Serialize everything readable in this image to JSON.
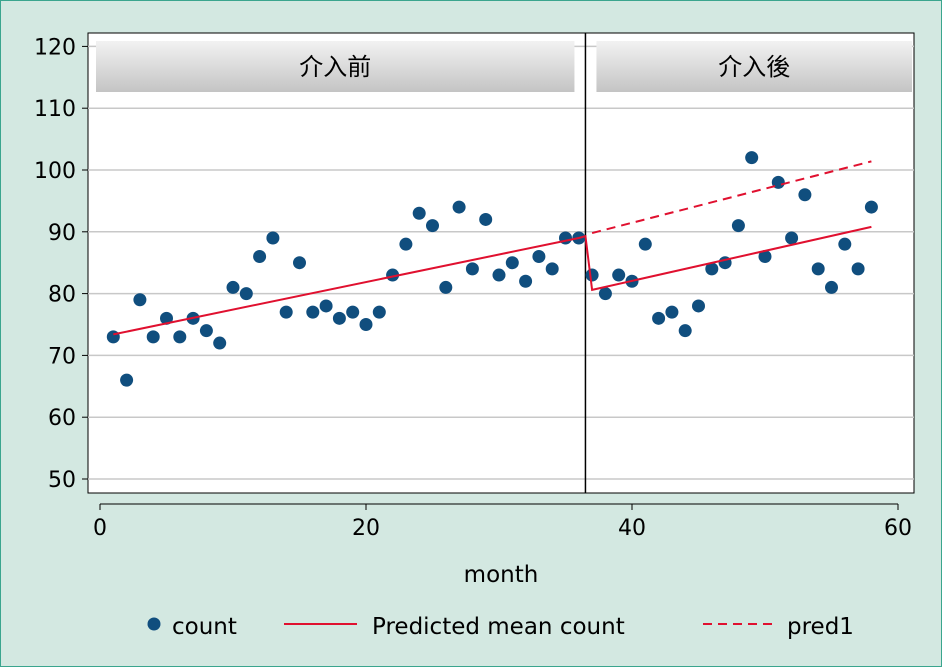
{
  "chart_data": {
    "type": "scatter",
    "xlabel": "month",
    "ylabel": "",
    "xlim": [
      -2,
      61
    ],
    "ylim": [
      47,
      122
    ],
    "x_ticks": [
      "0",
      "20",
      "40",
      "60"
    ],
    "y_ticks": [
      "50",
      "60",
      "70",
      "80",
      "90",
      "100",
      "110",
      "120"
    ],
    "panels": [
      "介入前",
      "介入後"
    ],
    "intervention_month": 36.5,
    "grid": true,
    "legend_position": "bottom",
    "series": [
      {
        "name": "count",
        "kind": "scatter",
        "color": "#104e7e",
        "x": [
          1,
          2,
          3,
          4,
          5,
          6,
          7,
          8,
          9,
          10,
          11,
          12,
          13,
          14,
          15,
          16,
          17,
          18,
          19,
          20,
          21,
          22,
          23,
          24,
          25,
          26,
          27,
          28,
          29,
          30,
          31,
          32,
          33,
          34,
          35,
          36,
          37,
          38,
          39,
          40,
          41,
          42,
          43,
          44,
          45,
          46,
          47,
          48,
          49,
          50,
          51,
          52,
          53,
          54,
          55,
          56,
          57,
          58
        ],
        "y": [
          73,
          66,
          79,
          73,
          76,
          73,
          76,
          74,
          72,
          81,
          80,
          86,
          89,
          77,
          85,
          77,
          78,
          76,
          77,
          75,
          77,
          83,
          88,
          93,
          91,
          81,
          94,
          84,
          92,
          83,
          85,
          82,
          86,
          84,
          89,
          89,
          83,
          80,
          83,
          82,
          88,
          76,
          77,
          74,
          78,
          84,
          85,
          91,
          102,
          86,
          98,
          89,
          96,
          84,
          81,
          88,
          84,
          94
        ]
      },
      {
        "name": "Predicted mean count",
        "kind": "line",
        "color": "#e0102f",
        "x": [
          1,
          36,
          36.5,
          37,
          58
        ],
        "y": [
          73.4,
          89.0,
          89.3,
          80.6,
          90.8
        ]
      },
      {
        "name": "pred1",
        "kind": "dashed-line",
        "color": "#e0102f",
        "x": [
          37,
          58
        ],
        "y": [
          89.8,
          101.4
        ]
      }
    ]
  }
}
